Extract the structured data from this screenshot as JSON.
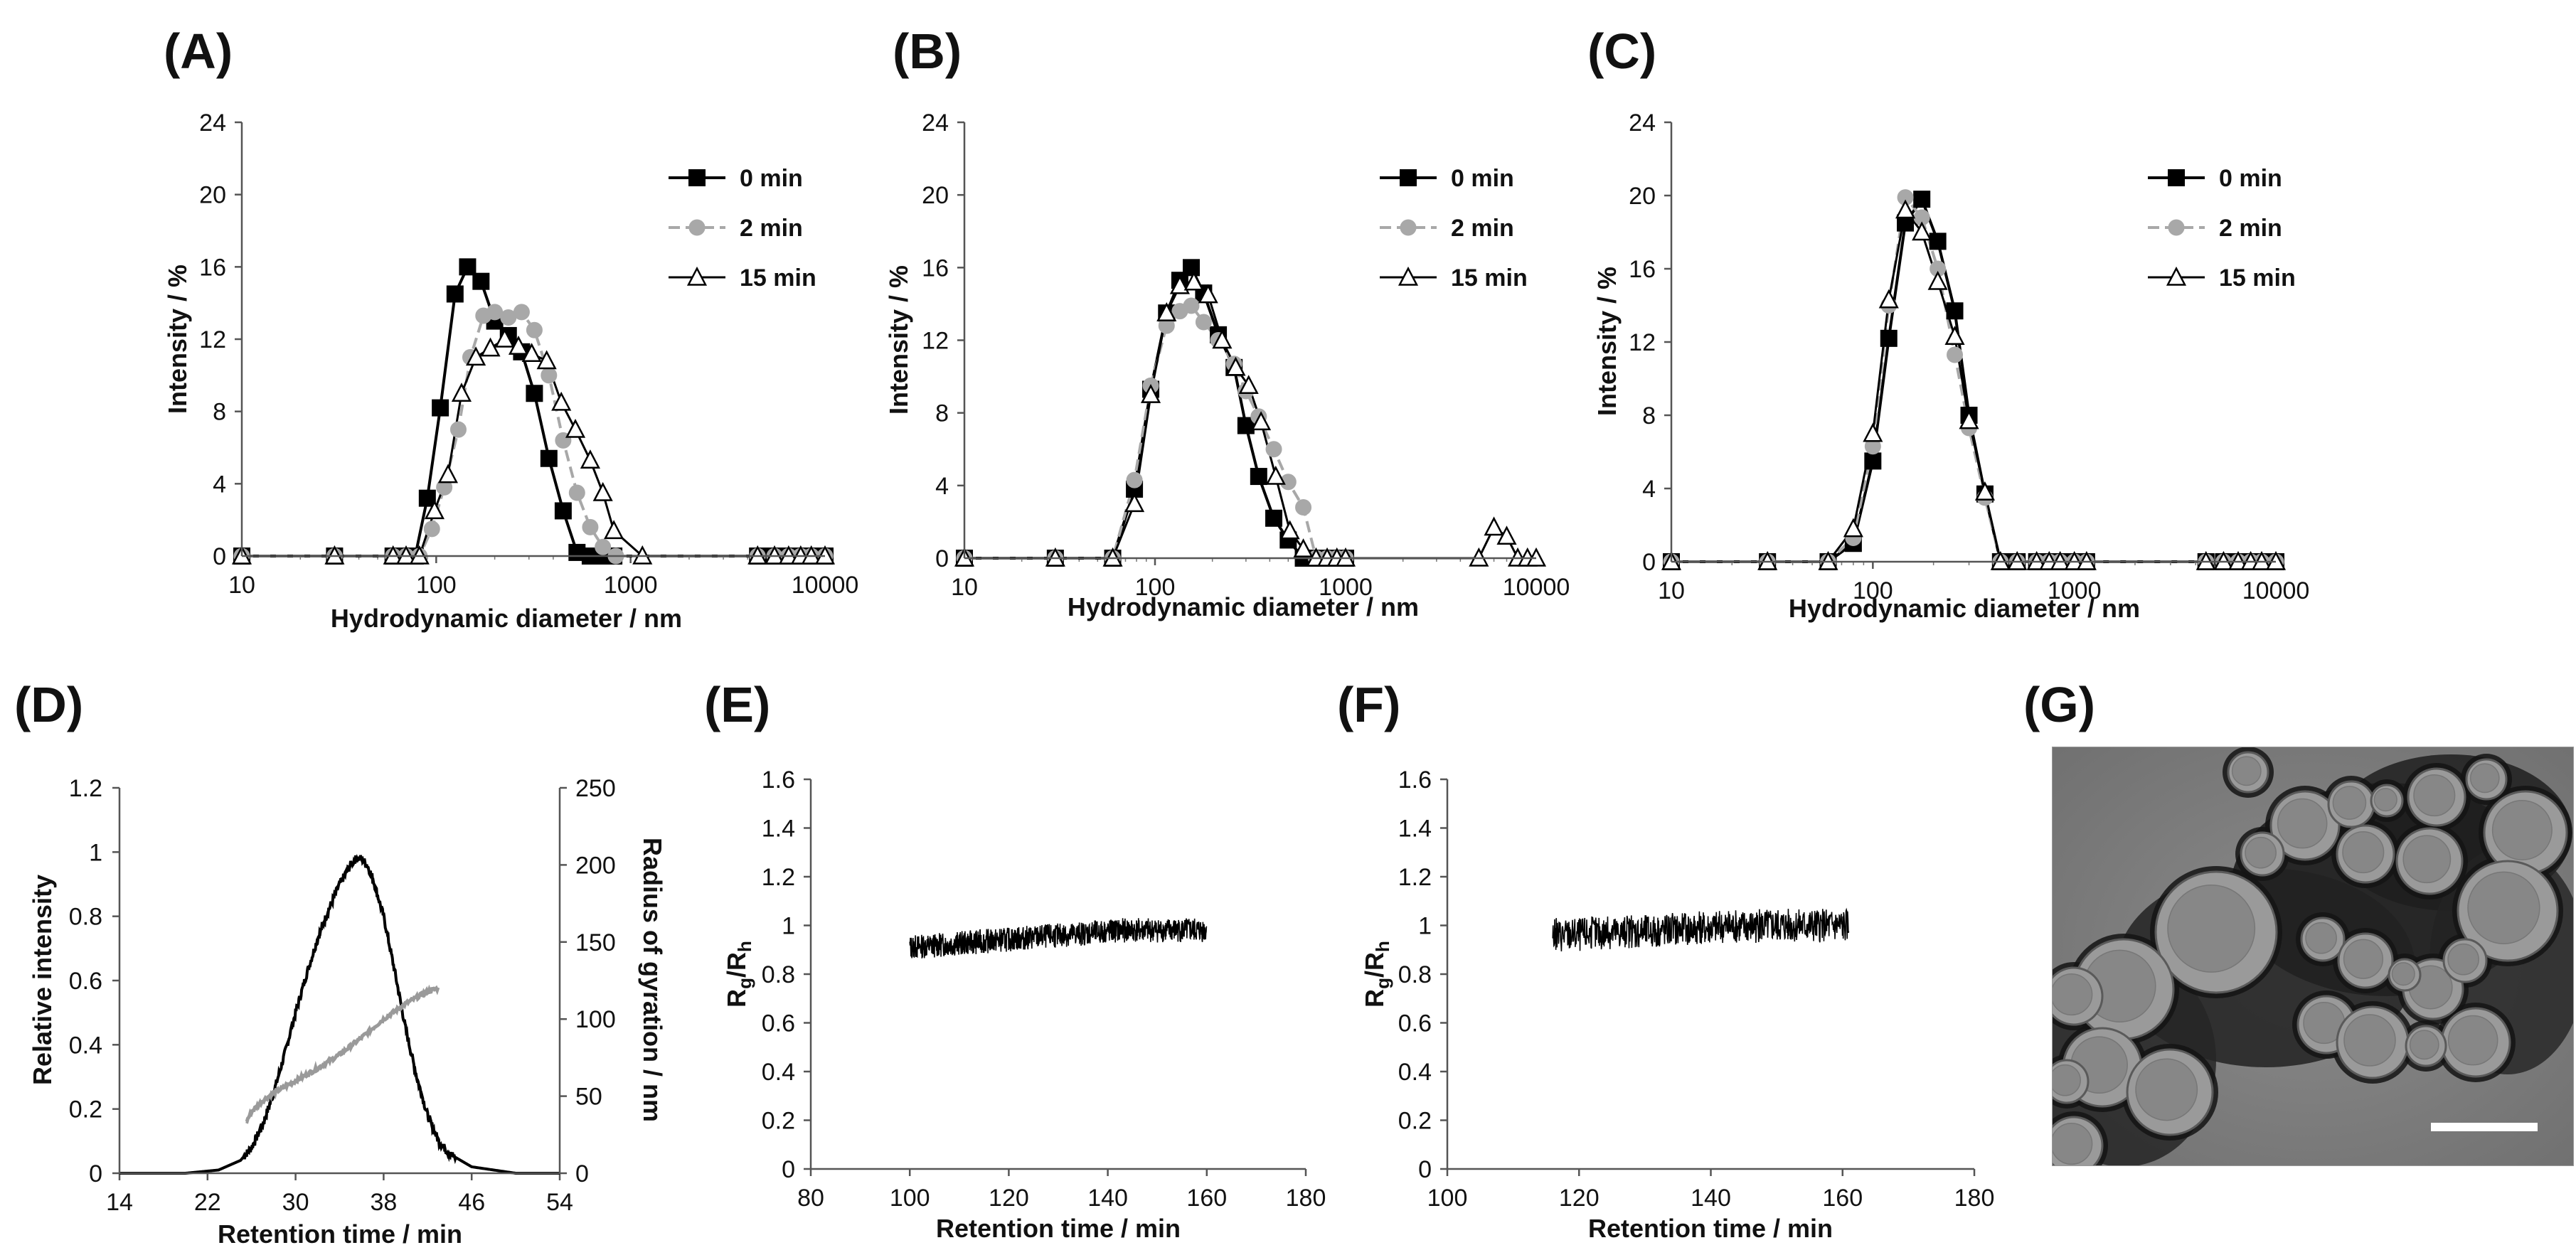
{
  "chart_data": [
    {
      "id": "A",
      "type": "line",
      "panel_label": "(A)",
      "xscale": "log",
      "xlim": [
        10,
        10000
      ],
      "ylim": [
        0,
        24
      ],
      "xticks": [
        "10",
        "100",
        "1000",
        "10000"
      ],
      "yticks": [
        "0",
        "4",
        "8",
        "12",
        "16",
        "20",
        "24"
      ],
      "xlabel": "Hydrodynamic diameter / nm",
      "ylabel": "Intensity / %",
      "legend": [
        "0 min",
        "2 min",
        "15 min"
      ],
      "series": [
        {
          "name": "0 min",
          "x": [
            10,
            30,
            60,
            70,
            78,
            90,
            105,
            125,
            145,
            170,
            200,
            235,
            275,
            320,
            380,
            450,
            530,
            620,
            720,
            820,
            4500,
            5500,
            6500,
            7500,
            8500,
            10000
          ],
          "y": [
            0,
            0,
            0,
            0,
            0,
            3.2,
            8.2,
            14.5,
            16.0,
            15.2,
            13.0,
            12.2,
            11.3,
            9.0,
            5.4,
            2.5,
            0.2,
            0,
            0,
            0,
            0,
            0,
            0,
            0,
            0,
            0
          ]
        },
        {
          "name": "2 min",
          "x": [
            10,
            30,
            60,
            70,
            82,
            95,
            110,
            130,
            150,
            175,
            200,
            235,
            275,
            320,
            380,
            450,
            530,
            620,
            720,
            840,
            4500,
            5500,
            6500,
            7500,
            8500,
            10000
          ],
          "y": [
            0,
            0,
            0,
            0,
            0,
            1.5,
            3.8,
            7.0,
            11.0,
            13.3,
            13.5,
            13.2,
            13.5,
            12.5,
            10.0,
            6.4,
            3.5,
            1.6,
            0.5,
            0,
            0,
            0,
            0,
            0,
            0,
            0
          ]
        },
        {
          "name": "15 min",
          "x": [
            10,
            30,
            60,
            70,
            82,
            98,
            115,
            135,
            160,
            190,
            225,
            265,
            310,
            370,
            440,
            520,
            620,
            720,
            820,
            1150,
            4500,
            5500,
            6500,
            7500,
            8500,
            10000
          ],
          "y": [
            0,
            0,
            0,
            0,
            0,
            2.5,
            4.5,
            9.0,
            11.0,
            11.5,
            12.0,
            11.6,
            11.2,
            10.8,
            8.5,
            7.0,
            5.3,
            3.5,
            1.4,
            0,
            0,
            0,
            0,
            0,
            0,
            0
          ]
        }
      ]
    },
    {
      "id": "B",
      "type": "line",
      "panel_label": "(B)",
      "xscale": "log",
      "xlim": [
        10,
        10000
      ],
      "ylim": [
        0,
        24
      ],
      "xticks": [
        "10",
        "100",
        "1000",
        "10000"
      ],
      "yticks": [
        "0",
        "4",
        "8",
        "12",
        "16",
        "20",
        "24"
      ],
      "xlabel": "Hydrodynamic diameter / nm",
      "ylabel": "Intensity / %",
      "legend": [
        "0 min",
        "2 min",
        "15 min"
      ],
      "series": [
        {
          "name": "0 min",
          "x": [
            10,
            30,
            60,
            78,
            95,
            115,
            135,
            155,
            180,
            215,
            260,
            300,
            350,
            420,
            500,
            600,
            700,
            800,
            900,
            1000
          ],
          "y": [
            0,
            0,
            0,
            3.8,
            9.3,
            13.5,
            15.3,
            16.0,
            14.6,
            12.3,
            10.5,
            7.3,
            4.5,
            2.2,
            1.0,
            0,
            0,
            0,
            0,
            0
          ]
        },
        {
          "name": "2 min",
          "x": [
            10,
            30,
            60,
            78,
            95,
            115,
            135,
            155,
            180,
            215,
            260,
            300,
            350,
            420,
            500,
            600,
            700,
            800,
            900,
            1000
          ],
          "y": [
            0,
            0,
            0,
            4.3,
            9.5,
            12.8,
            13.6,
            13.9,
            13.0,
            12.0,
            10.7,
            9.2,
            7.8,
            6.0,
            4.2,
            2.8,
            0,
            0,
            0,
            0
          ]
        },
        {
          "name": "15 min",
          "x": [
            10,
            30,
            60,
            78,
            95,
            115,
            135,
            160,
            190,
            225,
            265,
            310,
            360,
            430,
            510,
            600,
            700,
            800,
            900,
            1000,
            5000,
            6000,
            7000,
            8000,
            9000,
            10000
          ],
          "y": [
            0,
            0,
            0,
            3.0,
            9.0,
            13.5,
            15.0,
            15.2,
            14.5,
            12.0,
            10.5,
            9.5,
            7.5,
            4.5,
            1.5,
            0.5,
            0,
            0,
            0,
            0,
            0,
            1.7,
            1.2,
            0,
            0,
            0
          ]
        }
      ]
    },
    {
      "id": "C",
      "type": "line",
      "panel_label": "(C)",
      "xscale": "log",
      "xlim": [
        10,
        10000
      ],
      "ylim": [
        0,
        24
      ],
      "xticks": [
        "10",
        "100",
        "1000",
        "10000"
      ],
      "yticks": [
        "0",
        "4",
        "8",
        "12",
        "16",
        "20",
        "24"
      ],
      "xlabel": "Hydrodynamic diameter / nm",
      "ylabel": "Intensity / %",
      "legend": [
        "0 min",
        "2 min",
        "15 min"
      ],
      "series": [
        {
          "name": "0 min",
          "x": [
            10,
            30,
            60,
            80,
            100,
            120,
            145,
            175,
            210,
            255,
            300,
            360,
            430,
            520,
            650,
            750,
            850,
            1000,
            1150,
            4500,
            5500,
            6500,
            7500,
            8500,
            10000
          ],
          "y": [
            0,
            0,
            0,
            1.0,
            5.5,
            12.2,
            18.5,
            19.8,
            17.5,
            13.7,
            8.0,
            3.7,
            0,
            0,
            0,
            0,
            0,
            0,
            0,
            0,
            0,
            0,
            0,
            0,
            0
          ]
        },
        {
          "name": "2 min",
          "x": [
            10,
            30,
            60,
            80,
            100,
            120,
            145,
            175,
            210,
            255,
            300,
            360,
            430,
            520,
            650,
            750,
            850,
            1000,
            1150,
            4500,
            5500,
            6500,
            7500,
            8500,
            10000
          ],
          "y": [
            0,
            0,
            0,
            1.3,
            6.3,
            14.0,
            19.9,
            18.8,
            16.0,
            11.3,
            7.3,
            3.5,
            0,
            0,
            0,
            0,
            0,
            0,
            0,
            0,
            0,
            0,
            0,
            0,
            0
          ]
        },
        {
          "name": "15 min",
          "x": [
            10,
            30,
            60,
            80,
            100,
            120,
            145,
            175,
            210,
            255,
            300,
            360,
            430,
            520,
            650,
            750,
            850,
            1000,
            1150,
            4500,
            5500,
            6500,
            7500,
            8500,
            10000
          ],
          "y": [
            0,
            0,
            0,
            1.8,
            7.0,
            14.3,
            19.2,
            18.0,
            15.3,
            12.3,
            7.7,
            3.8,
            0,
            0,
            0,
            0,
            0,
            0,
            0,
            0,
            0,
            0,
            0,
            0,
            0
          ]
        }
      ]
    },
    {
      "id": "D",
      "type": "line",
      "panel_label": "(D)",
      "xlim": [
        14,
        54
      ],
      "ylim": [
        0,
        1.2
      ],
      "y2lim": [
        0,
        250
      ],
      "xticks": [
        "14",
        "22",
        "30",
        "38",
        "46",
        "54"
      ],
      "yticks": [
        "0",
        "0.2",
        "0.4",
        "0.6",
        "0.8",
        "1",
        "1.2"
      ],
      "y2ticks": [
        "0",
        "50",
        "100",
        "150",
        "200",
        "250"
      ],
      "xlabel": "Retention time / min",
      "ylabel": "Relative intensity",
      "y2label": "Radius of gyration / nm",
      "series": [
        {
          "name": "Relative intensity",
          "axis": "left",
          "x": [
            14,
            20,
            23,
            25,
            26,
            27,
            28,
            29,
            30,
            31,
            32,
            33,
            34,
            35,
            35.5,
            36,
            36.5,
            37,
            38,
            39,
            40,
            41,
            42,
            43,
            44,
            46,
            48,
            50,
            54
          ],
          "y": [
            0,
            0,
            0.01,
            0.04,
            0.08,
            0.15,
            0.25,
            0.37,
            0.5,
            0.62,
            0.73,
            0.82,
            0.9,
            0.96,
            0.98,
            0.98,
            0.96,
            0.92,
            0.8,
            0.63,
            0.45,
            0.3,
            0.18,
            0.1,
            0.06,
            0.02,
            0.01,
            0,
            0
          ]
        },
        {
          "name": "Radius of gyration",
          "axis": "right",
          "x": [
            25.5,
            26,
            27,
            28,
            30,
            32,
            34,
            36,
            38,
            40,
            42,
            43
          ],
          "y": [
            33,
            40,
            47,
            52,
            60,
            68,
            77,
            88,
            100,
            110,
            118,
            120
          ]
        }
      ]
    },
    {
      "id": "E",
      "type": "line",
      "panel_label": "(E)",
      "xlim": [
        80,
        180
      ],
      "ylim": [
        0,
        1.6
      ],
      "xticks": [
        "80",
        "100",
        "120",
        "140",
        "160",
        "180"
      ],
      "yticks": [
        "0",
        "0.2",
        "0.4",
        "0.6",
        "0.8",
        "1",
        "1.2",
        "1.4",
        "1.6"
      ],
      "xlabel": "Retention time / min",
      "ylabel": "Rg/Rh",
      "series": [
        {
          "name": "Rg/Rh",
          "x_range": [
            100,
            160
          ],
          "trend_start": 0.91,
          "trend_end": 0.98,
          "noise": 0.05
        }
      ]
    },
    {
      "id": "F",
      "type": "line",
      "panel_label": "(F)",
      "xlim": [
        100,
        180
      ],
      "ylim": [
        0,
        1.6
      ],
      "xticks": [
        "100",
        "120",
        "140",
        "160",
        "180"
      ],
      "yticks": [
        "0",
        "0.2",
        "0.4",
        "0.6",
        "0.8",
        "1",
        "1.2",
        "1.4",
        "1.6"
      ],
      "xlabel": "Retention time / min",
      "ylabel": "Rg/Rh",
      "series": [
        {
          "name": "Rg/Rh",
          "x_range": [
            116,
            161
          ],
          "trend_start": 0.96,
          "trend_end": 1.0,
          "noise": 0.07
        }
      ]
    }
  ],
  "image_panel": {
    "panel_label": "(G)"
  },
  "colors": {
    "series_0min": "#000000",
    "series_2min": "#a8a8a8",
    "series_15min": "#ffffff",
    "axis": "#555555"
  }
}
